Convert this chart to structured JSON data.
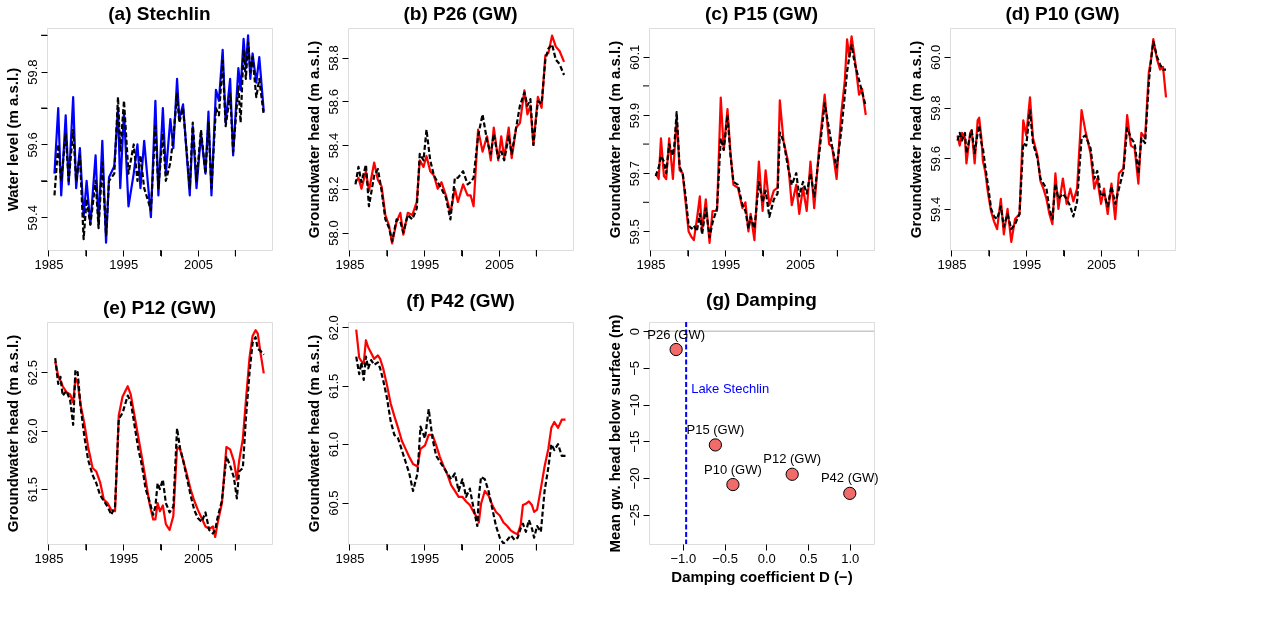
{
  "chart_data": [
    {
      "type": "line",
      "title": "(a) Stechlin",
      "ylabel": "Water level (m a.s.l.)",
      "xlim": [
        1984.8,
        2014.9
      ],
      "xticks": [
        1985,
        {
          "value": 1990,
          "label": null
        },
        1995,
        {
          "value": 2000,
          "label": null
        },
        2005,
        {
          "value": 2010,
          "label": null
        }
      ],
      "ylim": [
        59.31,
        59.92
      ],
      "yticks": [
        59.4,
        {
          "value": 59.5,
          "label": null
        },
        59.6,
        {
          "value": 59.7,
          "label": null
        },
        59.8,
        {
          "value": 59.9,
          "label": null
        }
      ],
      "grid": false,
      "legend": false,
      "x": [
        1985.8,
        1986.3,
        1986.7,
        1987.3,
        1987.7,
        1988.3,
        1988.7,
        1989.2,
        1989.7,
        1990.1,
        1990.6,
        1991.3,
        1991.7,
        1992.2,
        1992.7,
        1993.1,
        1993.8,
        1994.3,
        1994.6,
        1995.1,
        1995.7,
        1996.4,
        1996.9,
        1997.3,
        1997.8,
        1998.7,
        1999.3,
        1999.7,
        2000.3,
        2000.7,
        2001.3,
        2001.7,
        2002.2,
        2002.5,
        2003.0,
        2003.9,
        2004.3,
        2004.8,
        2005.4,
        2006.0,
        2006.4,
        2006.8,
        2007.4,
        2007.8,
        2008.3,
        2008.7,
        2009.3,
        2009.7,
        2010.4,
        2010.7,
        2011.1,
        2011.4,
        2011.7,
        2012.0,
        2012.3,
        2012.8,
        2013.2,
        2013.8
      ],
      "series": [
        {
          "color": "#0000ff",
          "line_style": "solid",
          "values": [
            59.52,
            59.7,
            59.46,
            59.68,
            59.49,
            59.73,
            59.48,
            59.59,
            59.4,
            59.5,
            59.38,
            59.57,
            59.38,
            59.61,
            59.33,
            59.51,
            59.54,
            59.7,
            59.48,
            59.69,
            59.43,
            59.52,
            59.6,
            59.48,
            59.61,
            59.4,
            59.72,
            59.46,
            59.7,
            59.52,
            59.67,
            59.59,
            59.78,
            59.67,
            59.71,
            59.46,
            59.65,
            59.48,
            59.63,
            59.52,
            59.69,
            59.46,
            59.75,
            59.72,
            59.86,
            59.66,
            59.78,
            59.57,
            59.81,
            59.75,
            59.89,
            59.81,
            59.9,
            59.78,
            59.85,
            59.77,
            59.84,
            59.69
          ]
        },
        {
          "color": "#000000",
          "line_style": "dashed",
          "values": [
            59.46,
            59.6,
            59.5,
            59.63,
            59.5,
            59.64,
            59.5,
            59.57,
            59.34,
            59.45,
            59.38,
            59.5,
            59.37,
            59.55,
            59.35,
            59.5,
            59.52,
            59.73,
            59.58,
            59.72,
            59.52,
            59.6,
            59.5,
            59.57,
            59.48,
            59.42,
            59.65,
            59.48,
            59.63,
            59.5,
            59.55,
            59.62,
            59.74,
            59.66,
            59.7,
            59.48,
            59.66,
            59.5,
            59.64,
            59.52,
            59.66,
            59.48,
            59.7,
            59.68,
            59.83,
            59.65,
            59.74,
            59.58,
            59.76,
            59.66,
            59.86,
            59.78,
            59.88,
            59.8,
            59.84,
            59.73,
            59.78,
            59.68
          ]
        }
      ]
    },
    {
      "type": "line",
      "title": "(b) P26 (GW)",
      "ylabel": "Groundwater head (m a.s.l.)",
      "xlim": [
        1984.8,
        2014.9
      ],
      "xticks": [
        1985,
        {
          "value": 1990,
          "label": null
        },
        1995,
        {
          "value": 2000,
          "label": null
        },
        2005,
        {
          "value": 2010,
          "label": null
        }
      ],
      "ylim": [
        57.92,
        58.935
      ],
      "yticks": [
        {
          "value": 58.0,
          "label": "58.0"
        },
        58.2,
        58.4,
        58.6,
        58.8
      ],
      "grid": false,
      "legend": false,
      "x": [
        1985.8,
        1986.2,
        1986.6,
        1987.2,
        1987.6,
        1988.3,
        1988.8,
        1989.3,
        1989.8,
        1990.3,
        1990.7,
        1991.3,
        1991.8,
        1992.2,
        1992.8,
        1993.4,
        1994.0,
        1994.4,
        1994.9,
        1995.3,
        1995.8,
        1996.3,
        1996.8,
        1997.3,
        1997.9,
        1998.5,
        1999.1,
        1999.5,
        2000.2,
        2000.8,
        2001.2,
        2001.6,
        2002.2,
        2002.8,
        2003.4,
        2003.9,
        2004.3,
        2004.9,
        2005.3,
        2005.7,
        2006.3,
        2006.7,
        2007.3,
        2007.8,
        2008.4,
        2008.8,
        2009.2,
        2009.6,
        2010.2,
        2010.7,
        2011.2,
        2011.6,
        2012.1,
        2012.6,
        2013.1,
        2013.7
      ],
      "series": [
        {
          "color": "#ff0000",
          "line_style": "solid",
          "values": [
            58.23,
            58.25,
            58.2,
            58.28,
            58.19,
            58.32,
            58.24,
            58.21,
            58.08,
            58.03,
            57.95,
            58.05,
            58.09,
            57.99,
            58.09,
            58.08,
            58.14,
            58.33,
            58.3,
            58.35,
            58.28,
            58.26,
            58.2,
            58.23,
            58.17,
            58.09,
            58.2,
            58.14,
            58.22,
            58.17,
            58.17,
            58.12,
            58.47,
            58.37,
            58.44,
            58.33,
            58.48,
            58.33,
            58.44,
            58.34,
            58.48,
            58.34,
            58.48,
            58.5,
            58.65,
            58.54,
            58.58,
            58.4,
            58.62,
            58.57,
            58.81,
            58.82,
            58.9,
            58.85,
            58.83,
            58.78
          ]
        },
        {
          "color": "#000000",
          "line_style": "dashed",
          "values": [
            58.22,
            58.3,
            58.23,
            58.31,
            58.12,
            58.26,
            58.29,
            58.19,
            58.06,
            58.02,
            57.96,
            58.06,
            58.05,
            58.0,
            58.08,
            58.06,
            58.11,
            58.36,
            58.33,
            58.47,
            58.33,
            58.26,
            58.23,
            58.2,
            58.16,
            58.06,
            58.25,
            58.25,
            58.28,
            58.22,
            58.23,
            58.25,
            58.44,
            58.54,
            58.42,
            58.36,
            58.45,
            58.34,
            58.37,
            58.33,
            58.44,
            58.36,
            58.48,
            58.58,
            58.64,
            58.58,
            58.61,
            58.4,
            58.6,
            58.59,
            58.79,
            58.84,
            58.86,
            58.79,
            58.77,
            58.72
          ]
        }
      ]
    },
    {
      "type": "line",
      "title": "(c) P15 (GW)",
      "ylabel": "Groundwater head (m a.s.l.)",
      "xlim": [
        1984.8,
        2014.9
      ],
      "xticks": [
        1985,
        {
          "value": 1990,
          "label": null
        },
        1995,
        {
          "value": 2000,
          "label": null
        },
        2005,
        {
          "value": 2010,
          "label": null
        }
      ],
      "ylim": [
        59.436,
        60.199
      ],
      "yticks": [
        59.5,
        {
          "value": 59.6,
          "label": null
        },
        59.7,
        {
          "value": 59.8,
          "label": null
        },
        59.9,
        {
          "value": 60.0,
          "label": null
        },
        60.1
      ],
      "grid": false,
      "legend": false,
      "x": [
        1985.7,
        1986.1,
        1986.4,
        1986.8,
        1987.1,
        1987.5,
        1988.0,
        1988.2,
        1988.5,
        1988.9,
        1989.3,
        1989.7,
        1990.1,
        1990.5,
        1990.8,
        1991.2,
        1991.6,
        1991.9,
        1992.4,
        1992.9,
        1993.3,
        1993.9,
        1994.4,
        1994.8,
        1995.3,
        1995.7,
        1996.1,
        1996.7,
        1997.3,
        1997.7,
        1998.1,
        1998.4,
        1998.9,
        1999.1,
        1999.5,
        2000.0,
        2000.4,
        2000.9,
        2001.5,
        2002.0,
        2002.3,
        2002.8,
        2003.4,
        2003.9,
        2004.5,
        2004.9,
        2005.4,
        2005.9,
        2006.4,
        2006.9,
        2007.5,
        2008.3,
        2008.9,
        2009.3,
        2009.9,
        2010.5,
        2011.0,
        2011.3,
        2011.6,
        2011.9,
        2012.3,
        2012.9,
        2013.3,
        2013.8
      ],
      "series": [
        {
          "color": "#ff0000",
          "line_style": "solid",
          "values": [
            59.7,
            59.68,
            59.82,
            59.69,
            59.68,
            59.82,
            59.68,
            59.77,
            59.89,
            59.71,
            59.7,
            59.6,
            59.5,
            59.48,
            59.47,
            59.54,
            59.62,
            59.5,
            59.61,
            59.46,
            59.57,
            59.57,
            59.96,
            59.78,
            59.92,
            59.77,
            59.66,
            59.65,
            59.58,
            59.6,
            59.5,
            59.56,
            59.47,
            59.56,
            59.74,
            59.57,
            59.71,
            59.59,
            59.64,
            59.65,
            59.95,
            59.81,
            59.74,
            59.59,
            59.66,
            59.56,
            59.65,
            59.57,
            59.74,
            59.58,
            59.77,
            59.97,
            59.8,
            59.79,
            59.68,
            59.9,
            60.02,
            60.16,
            60.1,
            60.17,
            60.1,
            59.97,
            59.99,
            59.9
          ]
        },
        {
          "color": "#000000",
          "line_style": "dashed",
          "values": [
            59.69,
            59.72,
            59.76,
            59.74,
            59.7,
            59.8,
            59.76,
            59.8,
            59.91,
            59.72,
            59.7,
            59.62,
            59.52,
            59.51,
            59.52,
            59.5,
            59.56,
            59.49,
            59.58,
            59.48,
            59.53,
            59.58,
            59.82,
            59.78,
            59.9,
            59.76,
            59.67,
            59.66,
            59.59,
            59.57,
            59.51,
            59.55,
            59.51,
            59.56,
            59.67,
            59.6,
            59.64,
            59.55,
            59.61,
            59.63,
            59.84,
            59.81,
            59.72,
            59.66,
            59.7,
            59.62,
            59.67,
            59.63,
            59.7,
            59.62,
            59.75,
            59.94,
            59.85,
            59.79,
            59.72,
            59.84,
            59.97,
            60.05,
            60.1,
            60.14,
            60.08,
            60.02,
            59.98,
            59.93
          ]
        }
      ]
    },
    {
      "type": "line",
      "title": "(d) P10 (GW)",
      "ylabel": "Groundwater head (m a.s.l.)",
      "xlim": [
        1984.8,
        2014.9
      ],
      "xticks": [
        1985,
        {
          "value": 1990,
          "label": null
        },
        1995,
        {
          "value": 2000,
          "label": null
        },
        2005,
        {
          "value": 2010,
          "label": null
        }
      ],
      "ylim": [
        59.238,
        60.114
      ],
      "yticks": [
        59.4,
        59.6,
        59.8,
        {
          "value": 60.0,
          "label": "60.0"
        }
      ],
      "grid": false,
      "legend": false,
      "x": [
        1985.8,
        1986.1,
        1986.4,
        1986.8,
        1987.0,
        1987.5,
        1987.7,
        1988.1,
        1988.5,
        1988.7,
        1989.0,
        1989.2,
        1989.5,
        1989.9,
        1990.3,
        1990.7,
        1991.1,
        1991.6,
        1992.0,
        1992.5,
        1993.0,
        1993.5,
        1994.1,
        1994.6,
        1995.0,
        1995.5,
        1995.9,
        1996.5,
        1996.9,
        1997.3,
        1997.7,
        1998.1,
        1998.5,
        1998.9,
        1999.3,
        1999.9,
        2000.4,
        2000.9,
        2001.3,
        2001.8,
        2002.4,
        2002.9,
        2003.6,
        2004.1,
        2004.5,
        2005.0,
        2005.4,
        2005.9,
        2006.4,
        2006.9,
        2007.4,
        2008.0,
        2008.5,
        2009.0,
        2009.5,
        2010.0,
        2010.4,
        2010.9,
        2011.4,
        2011.7,
        2012.0,
        2012.5,
        2012.9,
        2013.3,
        2013.7
      ],
      "series": [
        {
          "color": "#ff0000",
          "line_style": "solid",
          "values": [
            59.69,
            59.65,
            59.7,
            59.68,
            59.58,
            59.7,
            59.71,
            59.58,
            59.75,
            59.76,
            59.68,
            59.59,
            59.55,
            59.46,
            59.39,
            59.35,
            59.32,
            59.44,
            59.3,
            59.4,
            59.27,
            59.36,
            59.38,
            59.75,
            59.69,
            59.84,
            59.68,
            59.61,
            59.51,
            59.48,
            59.44,
            59.38,
            59.34,
            59.54,
            59.4,
            59.52,
            59.42,
            59.48,
            59.43,
            59.48,
            59.79,
            59.71,
            59.62,
            59.48,
            59.52,
            59.42,
            59.48,
            59.38,
            59.5,
            59.36,
            59.54,
            59.56,
            59.77,
            59.65,
            59.64,
            59.5,
            59.7,
            59.68,
            59.94,
            59.99,
            60.07,
            59.99,
            59.95,
            59.96,
            59.84
          ]
        },
        {
          "color": "#000000",
          "line_style": "dashed",
          "values": [
            59.67,
            59.7,
            59.67,
            59.7,
            59.62,
            59.69,
            59.71,
            59.62,
            59.7,
            59.73,
            59.66,
            59.64,
            59.57,
            59.49,
            59.4,
            59.37,
            59.36,
            59.41,
            59.33,
            59.38,
            59.32,
            59.34,
            59.38,
            59.66,
            59.65,
            59.79,
            59.66,
            59.6,
            59.52,
            59.5,
            59.48,
            59.4,
            59.36,
            59.5,
            59.44,
            59.46,
            59.44,
            59.41,
            59.37,
            59.43,
            59.68,
            59.69,
            59.64,
            59.52,
            59.55,
            59.45,
            59.46,
            59.41,
            59.49,
            59.42,
            59.48,
            59.55,
            59.72,
            59.68,
            59.66,
            59.54,
            59.68,
            59.66,
            59.9,
            59.99,
            60.06,
            60.0,
            59.97,
            59.95,
            59.95
          ]
        }
      ]
    },
    {
      "type": "line",
      "title": "(e) P12 (GW)",
      "ylabel": "Groundwater head (m a.s.l.)",
      "xlim": [
        1984.8,
        2014.9
      ],
      "xticks": [
        1985,
        {
          "value": 1990,
          "label": null
        },
        1995,
        {
          "value": 2000,
          "label": null
        },
        2005,
        {
          "value": 2010,
          "label": null
        }
      ],
      "ylim": [
        61.03,
        62.93
      ],
      "yticks": [
        61.5,
        {
          "value": 62.0,
          "label": "62.0"
        },
        62.5
      ],
      "grid": false,
      "legend": false,
      "x": [
        1985.9,
        1986.3,
        1986.6,
        1986.9,
        1987.4,
        1987.9,
        1988.3,
        1988.6,
        1988.9,
        1989.3,
        1989.8,
        1990.3,
        1990.9,
        1991.4,
        1991.9,
        1992.4,
        1992.9,
        1993.4,
        1993.9,
        1994.4,
        1994.9,
        1995.6,
        1996.0,
        1996.5,
        1997.0,
        1997.5,
        1998.0,
        1998.5,
        1999.0,
        1999.3,
        1999.6,
        1999.9,
        2000.3,
        2000.7,
        2001.2,
        2001.7,
        2002.2,
        2002.6,
        2003.0,
        2003.5,
        2004.0,
        2004.5,
        2005.0,
        2005.5,
        2006.0,
        2006.5,
        2007.0,
        2007.3,
        2007.6,
        2008.2,
        2008.8,
        2009.3,
        2009.8,
        2010.2,
        2010.5,
        2011.0,
        2011.4,
        2011.9,
        2012.3,
        2012.7,
        2013.0,
        2013.4,
        2013.8
      ],
      "series": [
        {
          "color": "#ff0000",
          "line_style": "solid",
          "values": [
            62.59,
            62.47,
            62.43,
            62.38,
            62.33,
            62.31,
            62.24,
            62.45,
            62.41,
            62.22,
            62.06,
            61.86,
            61.68,
            61.65,
            61.56,
            61.41,
            61.38,
            61.32,
            61.31,
            62.13,
            62.29,
            62.38,
            62.31,
            62.13,
            61.95,
            61.77,
            61.58,
            61.38,
            61.24,
            61.24,
            61.38,
            61.31,
            61.36,
            61.2,
            61.15,
            61.27,
            61.86,
            61.84,
            61.75,
            61.63,
            61.5,
            61.4,
            61.32,
            61.25,
            61.18,
            61.16,
            61.18,
            61.09,
            61.2,
            61.38,
            61.86,
            61.84,
            61.74,
            61.58,
            61.74,
            61.93,
            62.25,
            62.63,
            62.81,
            62.86,
            62.83,
            62.65,
            62.49
          ]
        },
        {
          "color": "#000000",
          "line_style": "dashed",
          "values": [
            62.62,
            62.4,
            62.46,
            62.3,
            62.34,
            62.26,
            62.05,
            62.52,
            62.5,
            62.2,
            61.95,
            61.75,
            61.62,
            61.55,
            61.45,
            61.4,
            61.35,
            61.28,
            61.35,
            62.1,
            62.15,
            62.3,
            62.25,
            62.05,
            61.85,
            61.7,
            61.5,
            61.4,
            61.28,
            61.35,
            61.55,
            61.5,
            61.58,
            61.38,
            61.3,
            61.35,
            62.02,
            61.85,
            61.75,
            61.6,
            61.45,
            61.32,
            61.25,
            61.22,
            61.3,
            61.15,
            61.12,
            61.15,
            61.25,
            61.4,
            61.78,
            61.7,
            61.6,
            61.42,
            61.65,
            61.68,
            62.1,
            62.5,
            62.75,
            62.8,
            62.7,
            62.68,
            62.65
          ]
        }
      ]
    },
    {
      "type": "line",
      "title": "(f) P42 (GW)",
      "ylabel": "Groundwater head (m a.s.l.)",
      "xlim": [
        1984.8,
        2014.9
      ],
      "xticks": [
        1985,
        {
          "value": 1990,
          "label": null
        },
        1995,
        {
          "value": 2000,
          "label": null
        },
        2005,
        {
          "value": 2010,
          "label": null
        }
      ],
      "ylim": [
        60.146,
        62.046
      ],
      "yticks": [
        60.5,
        {
          "value": 61.0,
          "label": "61.0"
        },
        61.5,
        {
          "value": 62.0,
          "label": "62.0"
        }
      ],
      "grid": false,
      "legend": false,
      "x": [
        1985.9,
        1986.3,
        1986.6,
        1986.9,
        1987.2,
        1987.5,
        1987.9,
        1988.3,
        1988.8,
        1989.1,
        1989.5,
        1990.0,
        1990.5,
        1991.0,
        1991.5,
        1992.0,
        1992.5,
        1993.0,
        1993.5,
        1994.1,
        1994.5,
        1995.1,
        1995.6,
        1996.1,
        1996.6,
        1997.1,
        1997.6,
        1998.1,
        1998.6,
        1999.1,
        1999.6,
        2000.1,
        2000.6,
        2001.1,
        2001.6,
        2002.1,
        2002.3,
        2002.6,
        2003.1,
        2003.6,
        2004.1,
        2004.6,
        2005.1,
        2005.6,
        2006.1,
        2006.6,
        2007.1,
        2007.5,
        2007.9,
        2008.2,
        2008.6,
        2009.0,
        2009.4,
        2009.7,
        2010.1,
        2010.6,
        2011.1,
        2011.6,
        2012.0,
        2012.4,
        2012.9,
        2013.4,
        2013.9
      ],
      "series": [
        {
          "color": "#ff0000",
          "line_style": "solid",
          "values": [
            61.98,
            61.74,
            61.71,
            61.69,
            61.89,
            61.83,
            61.78,
            61.73,
            61.76,
            61.73,
            61.65,
            61.51,
            61.35,
            61.24,
            61.14,
            61.03,
            60.96,
            60.89,
            60.83,
            60.81,
            60.96,
            60.99,
            61.08,
            61.08,
            60.99,
            60.89,
            60.81,
            60.74,
            60.65,
            60.6,
            60.55,
            60.55,
            60.51,
            60.48,
            60.42,
            60.37,
            60.33,
            60.49,
            60.6,
            60.56,
            60.48,
            60.42,
            60.39,
            60.33,
            60.3,
            60.26,
            60.24,
            60.23,
            60.31,
            60.48,
            60.49,
            60.51,
            60.48,
            60.42,
            60.44,
            60.62,
            60.81,
            60.96,
            61.14,
            61.19,
            61.14,
            61.21,
            61.21
          ]
        },
        {
          "color": "#000000",
          "line_style": "dashed",
          "values": [
            61.75,
            61.6,
            61.7,
            61.55,
            61.75,
            61.65,
            61.72,
            61.68,
            61.7,
            61.65,
            61.55,
            61.4,
            61.2,
            61.08,
            61.05,
            60.95,
            60.85,
            60.75,
            60.6,
            60.75,
            61.15,
            61.05,
            61.3,
            61.05,
            60.9,
            60.85,
            60.8,
            60.75,
            60.7,
            60.75,
            60.6,
            60.7,
            60.55,
            60.62,
            60.45,
            60.3,
            60.55,
            60.72,
            60.7,
            60.6,
            60.45,
            60.3,
            60.2,
            60.15,
            60.18,
            60.22,
            60.18,
            60.2,
            60.28,
            60.32,
            60.25,
            60.35,
            60.28,
            60.2,
            60.3,
            60.25,
            60.6,
            60.8,
            61.0,
            60.95,
            61.0,
            60.9,
            60.9
          ]
        }
      ]
    },
    {
      "type": "scatter",
      "title": "(g) Damping",
      "xlabel": "Damping coefficient D (−)",
      "ylabel": "Mean gw. head below surface (m)",
      "xlim": [
        -1.405,
        1.29
      ],
      "xticks": [
        {
          "value": -1.0,
          "label": "−1.0"
        },
        {
          "value": -0.5,
          "label": "−0.5"
        },
        {
          "value": 0.0,
          "label": "0.0"
        },
        0.5,
        {
          "value": 1.0,
          "label": "1.0"
        }
      ],
      "ylim": [
        -29.0,
        1.25
      ],
      "yticks": [
        0,
        {
          "value": -5,
          "label": "−5"
        },
        {
          "value": -10,
          "label": "−10"
        },
        {
          "value": -15,
          "label": "−15"
        },
        {
          "value": -20,
          "label": "−20"
        },
        {
          "value": -25,
          "label": "−25"
        }
      ],
      "grid": false,
      "legend": false,
      "marker": "circle",
      "x": [
        -1.08,
        -0.61,
        -0.4,
        0.31,
        1.0
      ],
      "series": [
        {
          "color": "#f26b6b",
          "values": [
            -2.5,
            -15.5,
            -20.9,
            -19.5,
            -22.1
          ]
        }
      ],
      "ref_lines": [
        {
          "axis": "y",
          "value": 0,
          "color": "#c8c8c8",
          "line_style": "solid"
        },
        {
          "axis": "x",
          "value": -0.96,
          "label": "Lake Stechlin",
          "color": "#0000ff",
          "line_style": "dashed"
        }
      ],
      "annotations": [
        {
          "text": "P26 (GW)",
          "x": -1.08,
          "y": -2.5
        },
        {
          "text": "P15 (GW)",
          "x": -0.61,
          "y": -15.5
        },
        {
          "text": "P10 (GW)",
          "x": -0.4,
          "y": -20.9
        },
        {
          "text": "P12 (GW)",
          "x": 0.31,
          "y": -19.5
        },
        {
          "text": "P42 (GW)",
          "x": 1.0,
          "y": -22.1
        }
      ]
    }
  ]
}
